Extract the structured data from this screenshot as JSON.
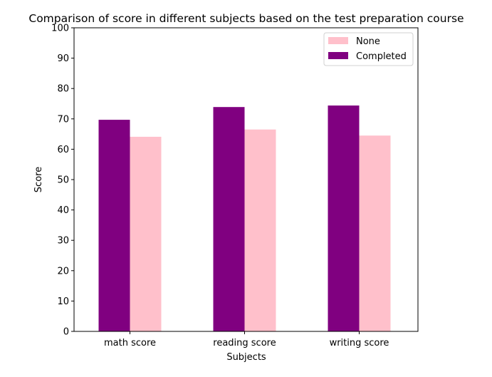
{
  "chart_data": {
    "type": "bar",
    "title": "Comparison of score in different subjects based on the test preparation course",
    "xlabel": "Subjects",
    "ylabel": "Score",
    "ylim": [
      0,
      100
    ],
    "yticks": [
      0,
      10,
      20,
      30,
      40,
      50,
      60,
      70,
      80,
      90,
      100
    ],
    "categories": [
      "math score",
      "reading score",
      "writing score"
    ],
    "series": [
      {
        "name": "Completed",
        "color": "#800080",
        "values": [
          69.7,
          73.9,
          74.4
        ]
      },
      {
        "name": "None",
        "color": "#ffc0cb",
        "values": [
          64.1,
          66.5,
          64.5
        ]
      }
    ],
    "legend": {
      "position": "top-right",
      "order": [
        "None",
        "Completed"
      ]
    },
    "grid": false
  }
}
